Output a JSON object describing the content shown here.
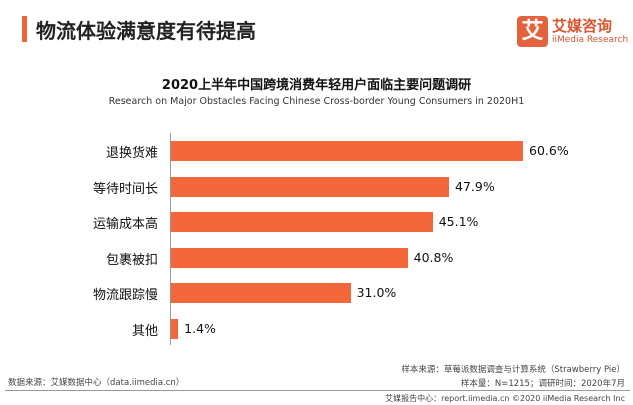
{
  "header": {
    "title": "物流体验满意度有待提高",
    "logo_mark": "艾",
    "logo_cn": "艾媒咨询",
    "logo_en": "iiMedia Research"
  },
  "chart_data": {
    "type": "bar",
    "orientation": "horizontal",
    "title": "2020上半年中国跨境消费年轻用户面临主要问题调研",
    "subtitle": "Research on Major Obstacles Facing Chinese Cross-border Young Consumers in 2020H1",
    "categories": [
      "退换货难",
      "等待时间长",
      "运输成本高",
      "包裹被扣",
      "物流跟踪慢",
      "其他"
    ],
    "values": [
      60.6,
      47.9,
      45.1,
      40.8,
      31.0,
      1.4
    ],
    "labels": [
      "60.6%",
      "47.9%",
      "45.1%",
      "40.8%",
      "31.0%",
      "1.4%"
    ],
    "unit": "%",
    "xlim": [
      0,
      70
    ],
    "grid": false,
    "color": "#f4673a"
  },
  "footer": {
    "source": "数据来源：艾媒数据中心（data.iimedia.cn）",
    "sample_source": "样本来源：草莓派数据调查与计算系统（Strawberry Pie）",
    "sample_info": "样本量：N=1215；调研时间：2020年7月",
    "report": "艾媒报告中心：report.iimedia.cn  ©2020  iiMedia Research Inc"
  }
}
